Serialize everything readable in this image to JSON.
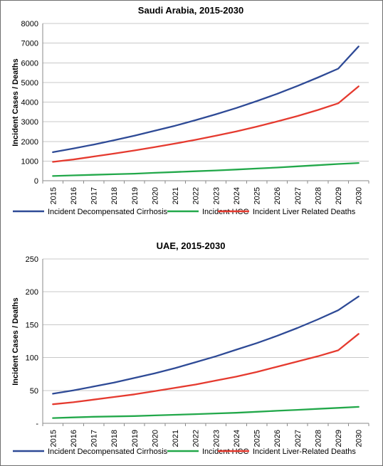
{
  "chart_data": [
    {
      "type": "line",
      "title": "Saudi Arabia, 2015-2030",
      "xlabel": "",
      "ylabel": "Incident Cases / Deaths",
      "x": [
        "2015",
        "2016",
        "2017",
        "2018",
        "2019",
        "2020",
        "2021",
        "2022",
        "2023",
        "2024",
        "2025",
        "2026",
        "2027",
        "2028",
        "2029",
        "2030"
      ],
      "ylim": [
        0,
        8000
      ],
      "yticks": [
        "0",
        "1000",
        "2000",
        "3000",
        "4000",
        "5000",
        "6000",
        "7000",
        "8000"
      ],
      "grid": true,
      "legend_position": "bottom",
      "series": [
        {
          "name": "Incident Decompensated Cirrhosis",
          "color": "#2e4a96",
          "values": [
            1450,
            1640,
            1840,
            2060,
            2290,
            2540,
            2800,
            3080,
            3380,
            3700,
            4050,
            4420,
            4820,
            5250,
            5700,
            6830
          ]
        },
        {
          "name": "Incident HCC",
          "color": "#22a84a",
          "values": [
            240,
            270,
            300,
            330,
            360,
            400,
            440,
            480,
            520,
            570,
            620,
            670,
            730,
            790,
            850,
            900
          ]
        },
        {
          "name": "Incident Liver Related Deaths",
          "color": "#e53a2f",
          "values": [
            960,
            1080,
            1230,
            1380,
            1540,
            1710,
            1890,
            2080,
            2290,
            2510,
            2750,
            3010,
            3290,
            3600,
            3940,
            4800
          ]
        }
      ]
    },
    {
      "type": "line",
      "title": "UAE, 2015-2030",
      "xlabel": "",
      "ylabel": "Incident Cases / Deaths",
      "x": [
        "2015",
        "2016",
        "2017",
        "2018",
        "2019",
        "2020",
        "2021",
        "2022",
        "2023",
        "2024",
        "2025",
        "2026",
        "2027",
        "2028",
        "2029",
        "2030"
      ],
      "ylim": [
        0,
        250
      ],
      "yticks": [
        "-",
        "50",
        "100",
        "150",
        "200",
        "250"
      ],
      "grid": true,
      "legend_position": "bottom",
      "series": [
        {
          "name": "Incident Decompensated Cirrhosis",
          "color": "#2e4a96",
          "values": [
            45,
            50,
            56,
            62,
            69,
            76,
            84,
            93,
            102,
            112,
            122,
            133,
            145,
            158,
            172,
            193
          ]
        },
        {
          "name": "Incident HCC",
          "color": "#22a84a",
          "values": [
            8,
            9,
            10,
            10.5,
            11,
            12,
            13,
            14,
            15,
            16,
            17.5,
            19,
            20.5,
            22,
            23.5,
            25
          ]
        },
        {
          "name": "Incident Liver-Related Deaths",
          "color": "#e53a2f",
          "values": [
            29,
            32,
            36,
            40,
            44,
            49,
            54,
            59,
            65,
            71,
            78,
            86,
            94,
            102,
            111,
            136
          ]
        }
      ]
    }
  ]
}
